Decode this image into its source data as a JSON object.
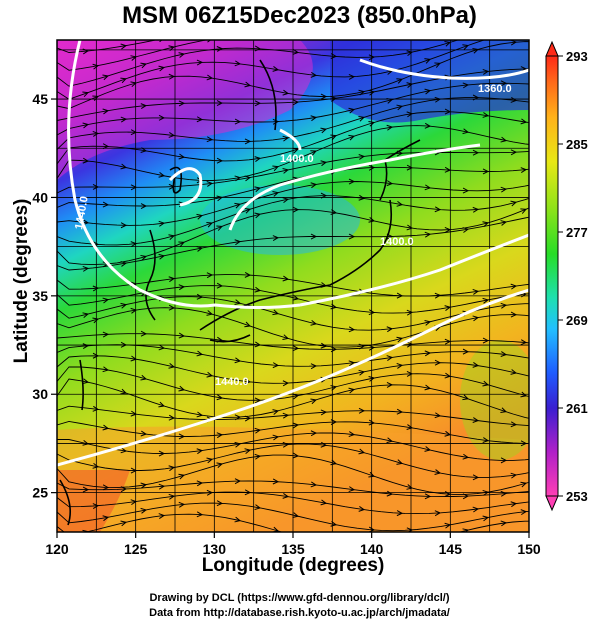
{
  "title": "MSM 06Z15Dec2023 (850.0hPa)",
  "x_axis": {
    "label": "Longitude (degrees)",
    "min": 120,
    "max": 150,
    "ticks": [
      "120",
      "125",
      "130",
      "135",
      "140",
      "145",
      "150"
    ]
  },
  "y_axis": {
    "label": "Latitude  (degrees)",
    "min": 23,
    "max": 48,
    "ticks": [
      "25",
      "30",
      "35",
      "40",
      "45"
    ]
  },
  "colorbar": {
    "min": 253,
    "max": 293,
    "ticks": [
      "253",
      "261",
      "269",
      "277",
      "285",
      "293"
    ],
    "colors": [
      "#ff3fb5",
      "#b020c8",
      "#3a1fd0",
      "#1f5cff",
      "#22c0ff",
      "#1ee0b0",
      "#27dd27",
      "#8be21a",
      "#e8e815",
      "#ffb21a",
      "#ff6a1a",
      "#ff2a18"
    ]
  },
  "contour_labels": [
    "1360.0",
    "1400.0",
    "1440.0",
    "1400.0",
    "1440.0"
  ],
  "credits": {
    "line1": "Drawing by DCL (https://www.gfd-dennou.org/library/dcl/)",
    "line2": "Data from http://database.rish.kyoto-u.ac.jp/arch/jmadata/"
  },
  "colors": {
    "contour": "#ffffff",
    "streamline": "#000000",
    "frame": "#000000"
  }
}
